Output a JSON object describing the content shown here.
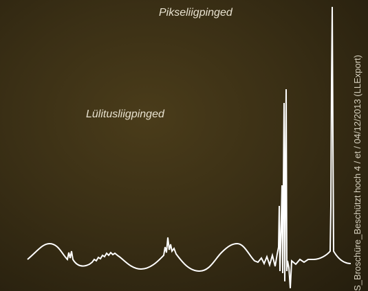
{
  "labels": {
    "pixel": "Pikseliigpinged",
    "switching": "Lülitusliigpinged"
  },
  "side_text": "S_Broschüre_Beschützt hoch 4 / et / 04/12/2013 (LLExport)"
}
